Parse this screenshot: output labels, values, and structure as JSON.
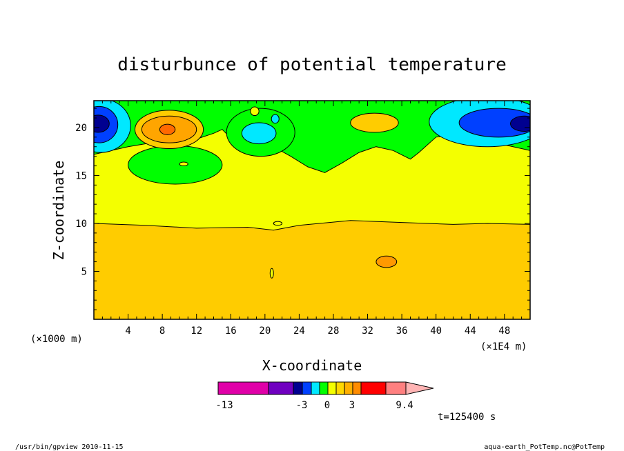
{
  "chart_data": {
    "type": "heatmap",
    "title": "disturbunce of potential temperature",
    "xlabel": "X-coordinate",
    "ylabel": "Z-coordinate",
    "x_unit_left": "(×1000 m)",
    "x_unit_right": "(×1E4 m)",
    "xlim": [
      0,
      51
    ],
    "ylim": [
      0,
      22.8
    ],
    "xticks": [
      "4",
      "8",
      "12",
      "16",
      "20",
      "24",
      "28",
      "32",
      "36",
      "40",
      "44",
      "48"
    ],
    "yticks": [
      "5",
      "10",
      "15",
      "20"
    ],
    "time_label": "t=125400 s",
    "colorbar": {
      "labels": [
        "-13",
        "-3",
        "0",
        "3",
        "9.4"
      ],
      "colors": [
        "#e000a8",
        "#7000c0",
        "#000090",
        "#0040ff",
        "#00e8ff",
        "#00ff00",
        "#f4ff00",
        "#ffd700",
        "#ffb000",
        "#ff8c00",
        "#ff0000",
        "#ff8080",
        "#ffb4b4"
      ]
    },
    "levels": {
      "band_lower": {
        "value_range": "1 to 2",
        "color": "#ffcc00"
      },
      "band_middle": {
        "value_range": "0 to 1",
        "color": "#f4ff00"
      },
      "band_upper": {
        "value_range": "-1 to 0",
        "color": "#00ff00"
      },
      "lower_boundary_z": [
        [
          0,
          10.0
        ],
        [
          6,
          9.8
        ],
        [
          12,
          9.5
        ],
        [
          18,
          9.6
        ],
        [
          21,
          9.3
        ],
        [
          24,
          9.8
        ],
        [
          30,
          10.3
        ],
        [
          36,
          10.1
        ],
        [
          42,
          9.9
        ],
        [
          46,
          10.0
        ],
        [
          51,
          9.9
        ]
      ],
      "upper_boundary_z": [
        [
          0,
          17.2
        ],
        [
          4,
          18.0
        ],
        [
          8,
          18.6
        ],
        [
          12,
          18.8
        ],
        [
          14,
          19.4
        ],
        [
          15,
          19.8
        ],
        [
          16,
          18.9
        ],
        [
          18,
          18.5
        ],
        [
          21,
          18.0
        ],
        [
          23,
          17.0
        ],
        [
          25,
          15.9
        ],
        [
          27,
          15.3
        ],
        [
          29,
          16.3
        ],
        [
          31,
          17.4
        ],
        [
          33,
          18.0
        ],
        [
          35,
          17.6
        ],
        [
          37,
          16.7
        ],
        [
          38,
          17.4
        ],
        [
          40,
          19.0
        ],
        [
          43,
          19.3
        ],
        [
          46,
          18.6
        ],
        [
          49,
          18.0
        ],
        [
          51,
          17.6
        ]
      ]
    },
    "features": [
      {
        "label": "blue-left",
        "x": 1.2,
        "z": 20.3,
        "value": -3
      },
      {
        "label": "blue-right",
        "x": 49.0,
        "z": 20.3,
        "value": -3
      },
      {
        "label": "orange-high",
        "x": 8.8,
        "z": 19.8,
        "value": 2
      },
      {
        "label": "orange-high-right",
        "x": 33.0,
        "z": 20.5,
        "value": 1
      },
      {
        "label": "orange-low",
        "x": 34.2,
        "z": 6.0,
        "value": 2
      },
      {
        "label": "cyan-middle",
        "x": 19.3,
        "z": 19.4,
        "value": -2
      },
      {
        "label": "green-lower-left",
        "x": 9.5,
        "z": 16.1,
        "value": -1
      }
    ]
  },
  "footer": {
    "left": "/usr/bin/gpview   2010-11-15",
    "right": "aqua-earth_PotTemp.nc@PotTemp"
  }
}
